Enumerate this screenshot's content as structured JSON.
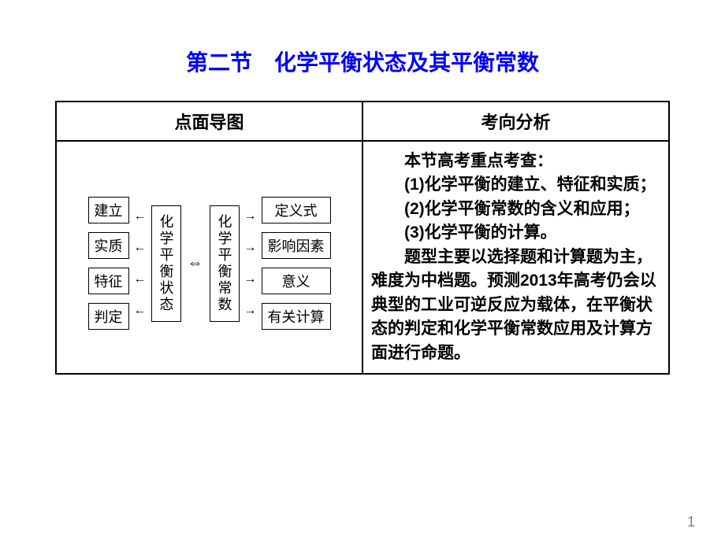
{
  "title": "第二节　化学平衡状态及其平衡常数",
  "headers": {
    "left": "点面导图",
    "right": "考向分析"
  },
  "diagram": {
    "left_nodes": [
      "建立",
      "实质",
      "特征",
      "判定"
    ],
    "center_left": "化学平衡状态",
    "center_right": "化学平衡常数",
    "right_nodes": [
      "定义式",
      "影响因素",
      "意义",
      "有关计算"
    ]
  },
  "analysis": {
    "intro": "本节高考重点考查：",
    "p1": "(1)化学平衡的建立、特征和实质；",
    "p2": "(2)化学平衡常数的含义和应用；",
    "p3": "(3)化学平衡的计算。",
    "body": "题型主要以选择题和计算题为主，难度为中档题。预测2013年高考仍会以典型的工业可逆反应为载体，在平衡状态的判定和化学平衡常数应用及计算方面进行命题。"
  },
  "page_number": "1"
}
